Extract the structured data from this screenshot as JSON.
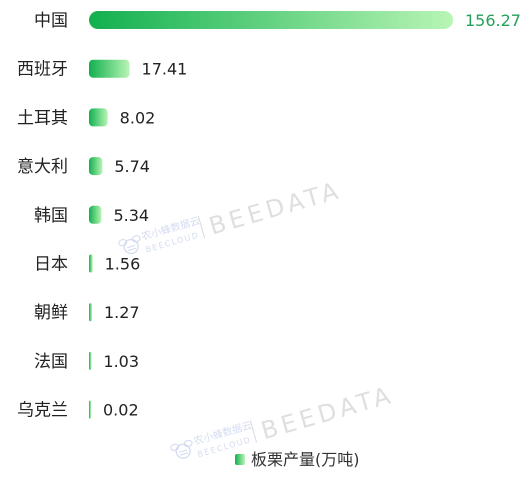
{
  "chart_data": {
    "type": "bar",
    "orientation": "horizontal",
    "categories": [
      "中国",
      "西班牙",
      "土耳其",
      "意大利",
      "韩国",
      "日本",
      "朝鲜",
      "法国",
      "乌克兰"
    ],
    "series": [
      {
        "name": "板栗产量(万吨)",
        "values": [
          156.27,
          17.41,
          8.02,
          5.74,
          5.34,
          1.56,
          1.27,
          1.03,
          0.02
        ]
      }
    ],
    "highlight_color": "#23a15b",
    "bar_color_start": "#12b04e",
    "bar_color_end": "#b8f5b4",
    "label_color": "#222222",
    "legend_position": "bottom-center",
    "grid": false
  },
  "watermark": {
    "brand": "BEEDATA",
    "cn": "农小蜂数据云",
    "en": "BEECLOUD"
  }
}
